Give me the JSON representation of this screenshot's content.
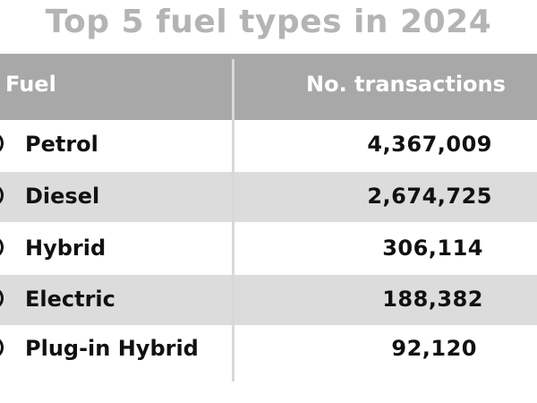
{
  "title": "Top 5 fuel types in 2024",
  "table": {
    "headers": {
      "fuel": "Fuel",
      "transactions": "No. transactions"
    },
    "rows": [
      {
        "fuel": "Petrol",
        "transactions": "4,367,009"
      },
      {
        "fuel": "Diesel",
        "transactions": "2,674,725"
      },
      {
        "fuel": "Hybrid",
        "transactions": "306,114"
      },
      {
        "fuel": "Electric",
        "transactions": "188,382"
      },
      {
        "fuel": "Plug-in Hybrid",
        "transactions": "92,120"
      }
    ]
  },
  "chart_data": {
    "type": "table",
    "title": "Top 5 fuel types in 2024",
    "columns": [
      "Fuel",
      "No. transactions"
    ],
    "categories": [
      "Petrol",
      "Diesel",
      "Hybrid",
      "Electric",
      "Plug-in Hybrid"
    ],
    "values": [
      4367009,
      2674725,
      306114,
      188382,
      92120
    ]
  },
  "colors": {
    "title": "#b4b4b4",
    "header_bg": "#a8a8a8",
    "header_text": "#ffffff",
    "shaded_row": "#dcdcdc",
    "text": "#111111"
  }
}
